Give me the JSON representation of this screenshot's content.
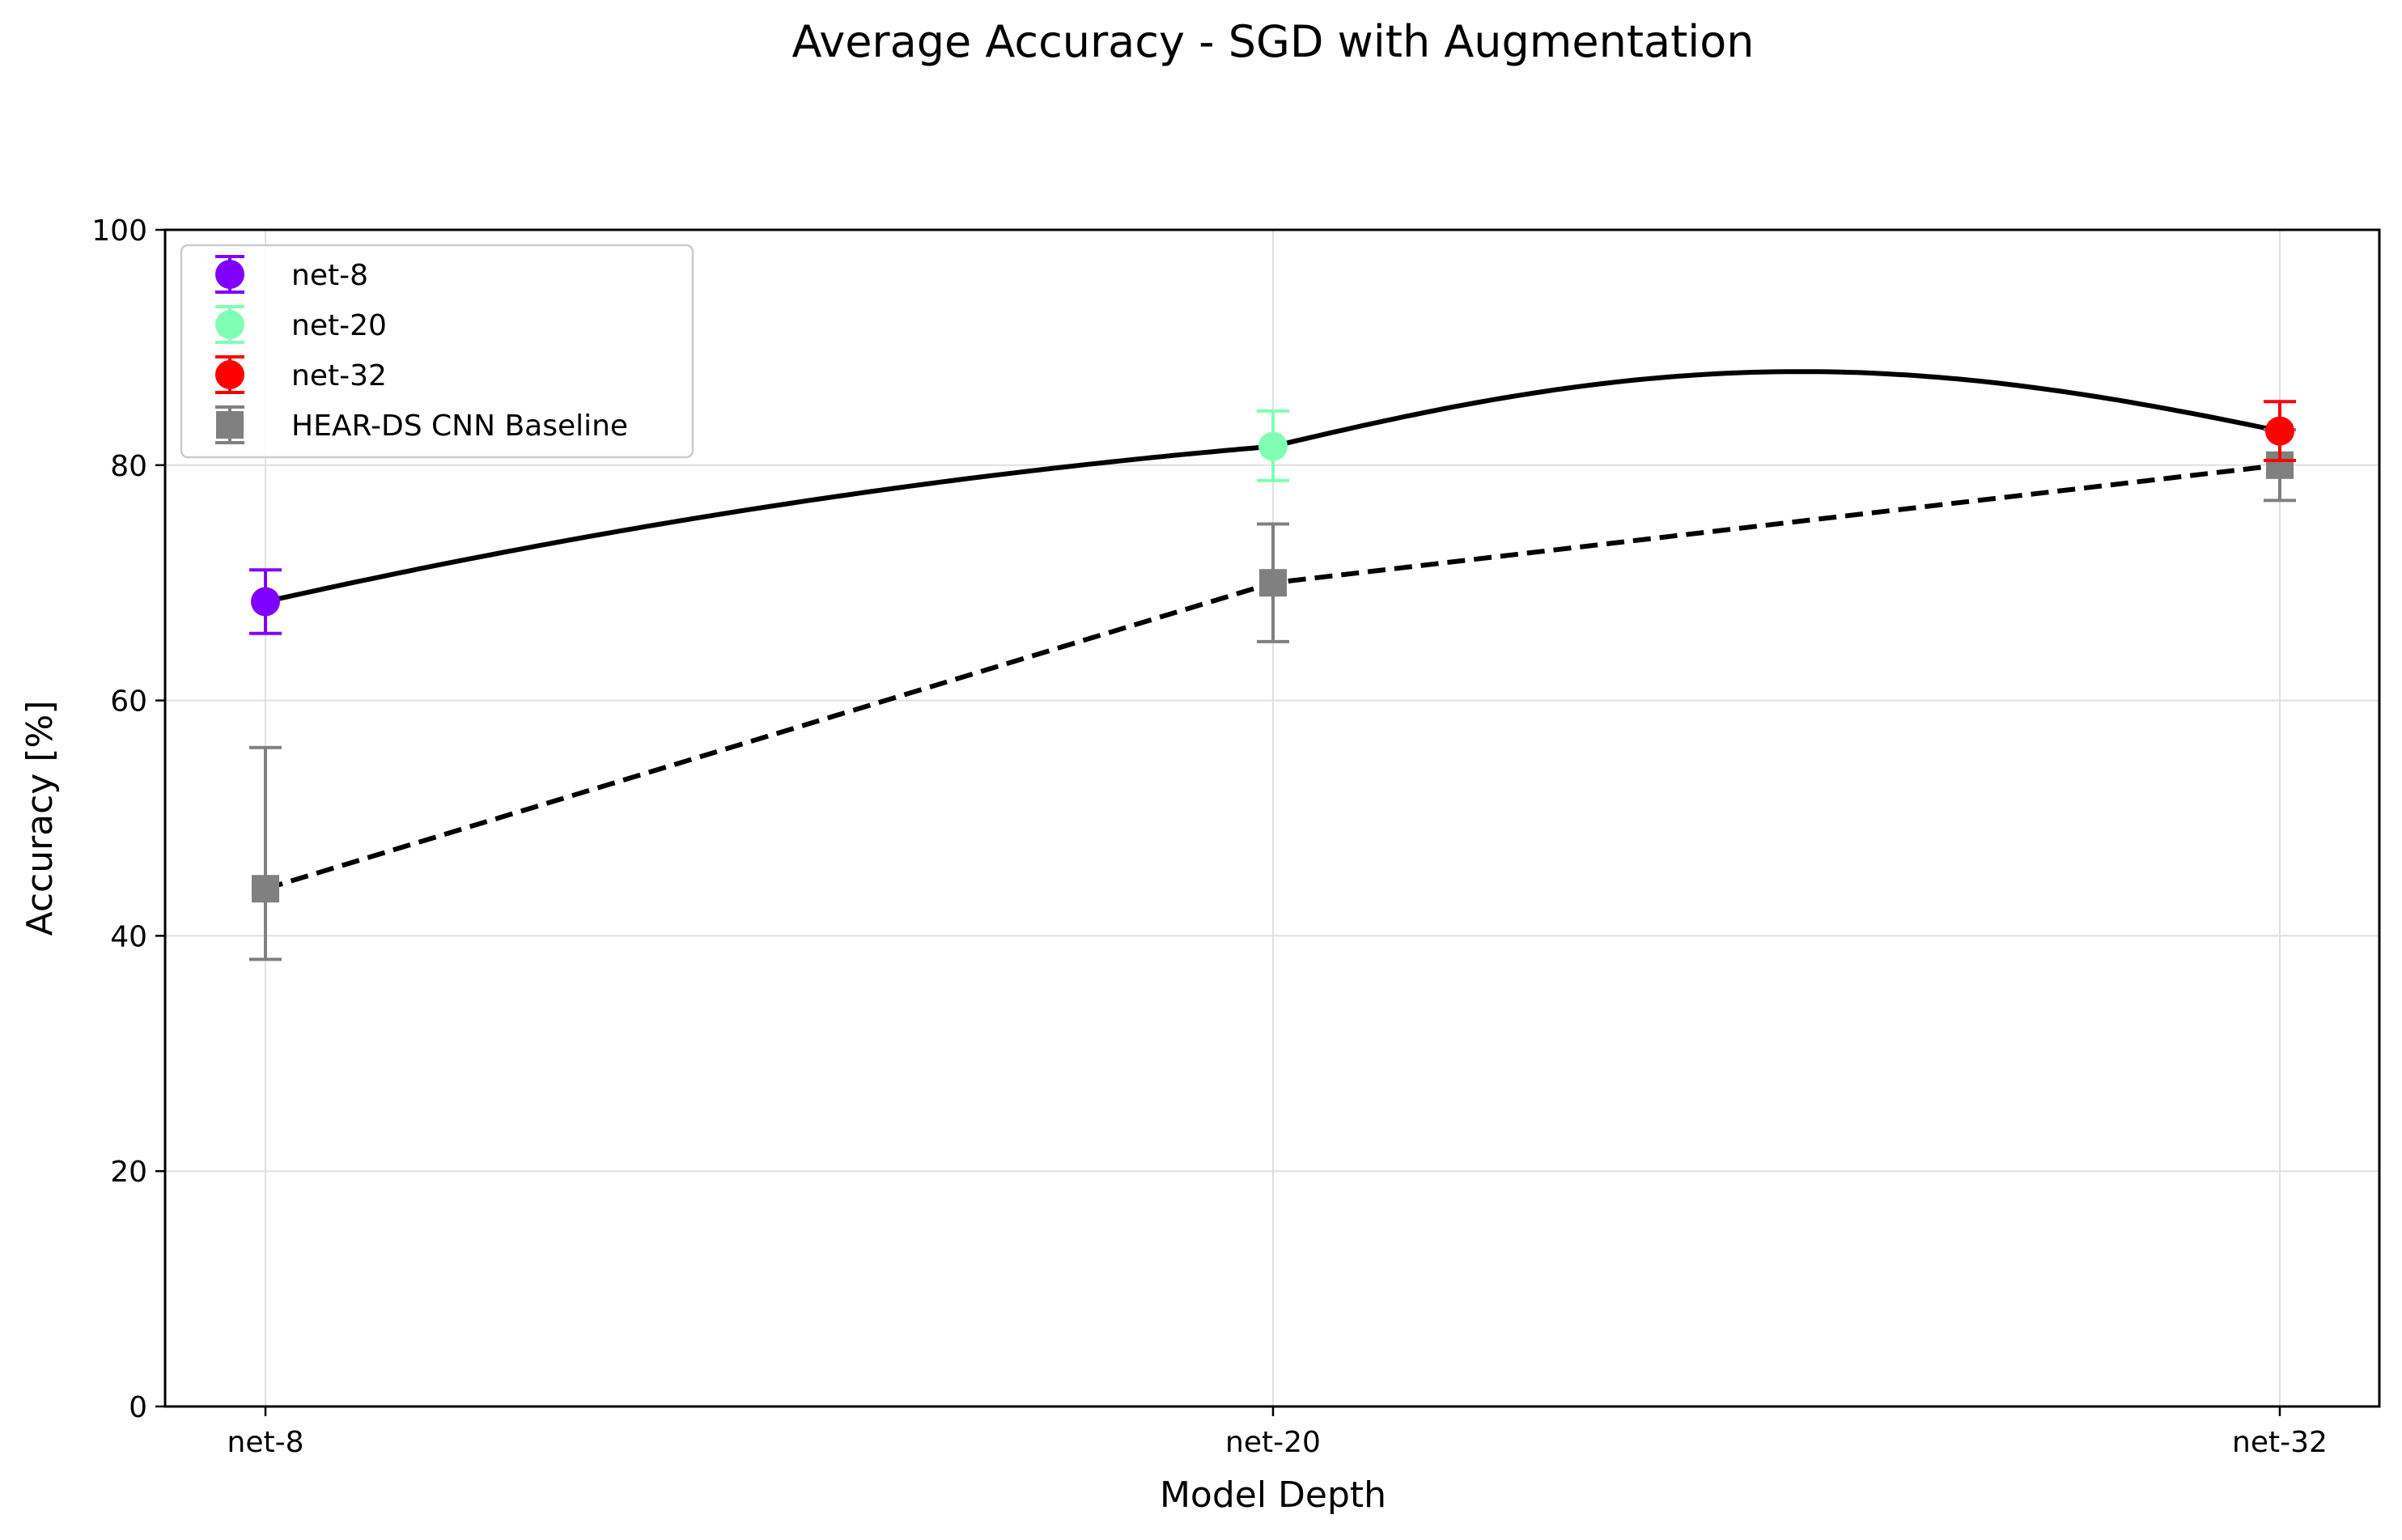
{
  "chart_data": {
    "type": "line",
    "title": "Average Accuracy - SGD with Augmentation",
    "xlabel": "Model Depth",
    "ylabel": "Accuracy [%]",
    "categories": [
      "net-8",
      "net-20",
      "net-32"
    ],
    "ylim": [
      0,
      100
    ],
    "yticks": [
      0,
      20,
      40,
      60,
      80,
      100
    ],
    "ytick_labels": [
      "0",
      "20",
      "40",
      "60",
      "80",
      "100"
    ],
    "grid": true,
    "legend_position": "top-left",
    "series": [
      {
        "name": "net-8",
        "marker": "circle",
        "color": "#7f00ff",
        "x": "net-8",
        "value": 68.4,
        "err_low": 65.7,
        "err_high": 71.1
      },
      {
        "name": "net-20",
        "marker": "circle",
        "color": "#80ffb4",
        "x": "net-20",
        "value": 81.6,
        "err_low": 78.7,
        "err_high": 84.6
      },
      {
        "name": "net-32",
        "marker": "circle",
        "color": "#ff0000",
        "x": "net-32",
        "value": 82.9,
        "err_low": 80.4,
        "err_high": 85.4
      },
      {
        "name": "HEAR-DS CNN Baseline",
        "marker": "square",
        "color": "#808080",
        "values": [
          44,
          70,
          80
        ],
        "err_low": [
          38,
          65,
          77
        ],
        "err_high": [
          56,
          75,
          83
        ]
      }
    ],
    "trend_line": {
      "style": "solid",
      "color": "#000000",
      "values": [
        68.4,
        81.6,
        82.9
      ]
    },
    "baseline_line": {
      "style": "dashed",
      "color": "#000000"
    }
  }
}
